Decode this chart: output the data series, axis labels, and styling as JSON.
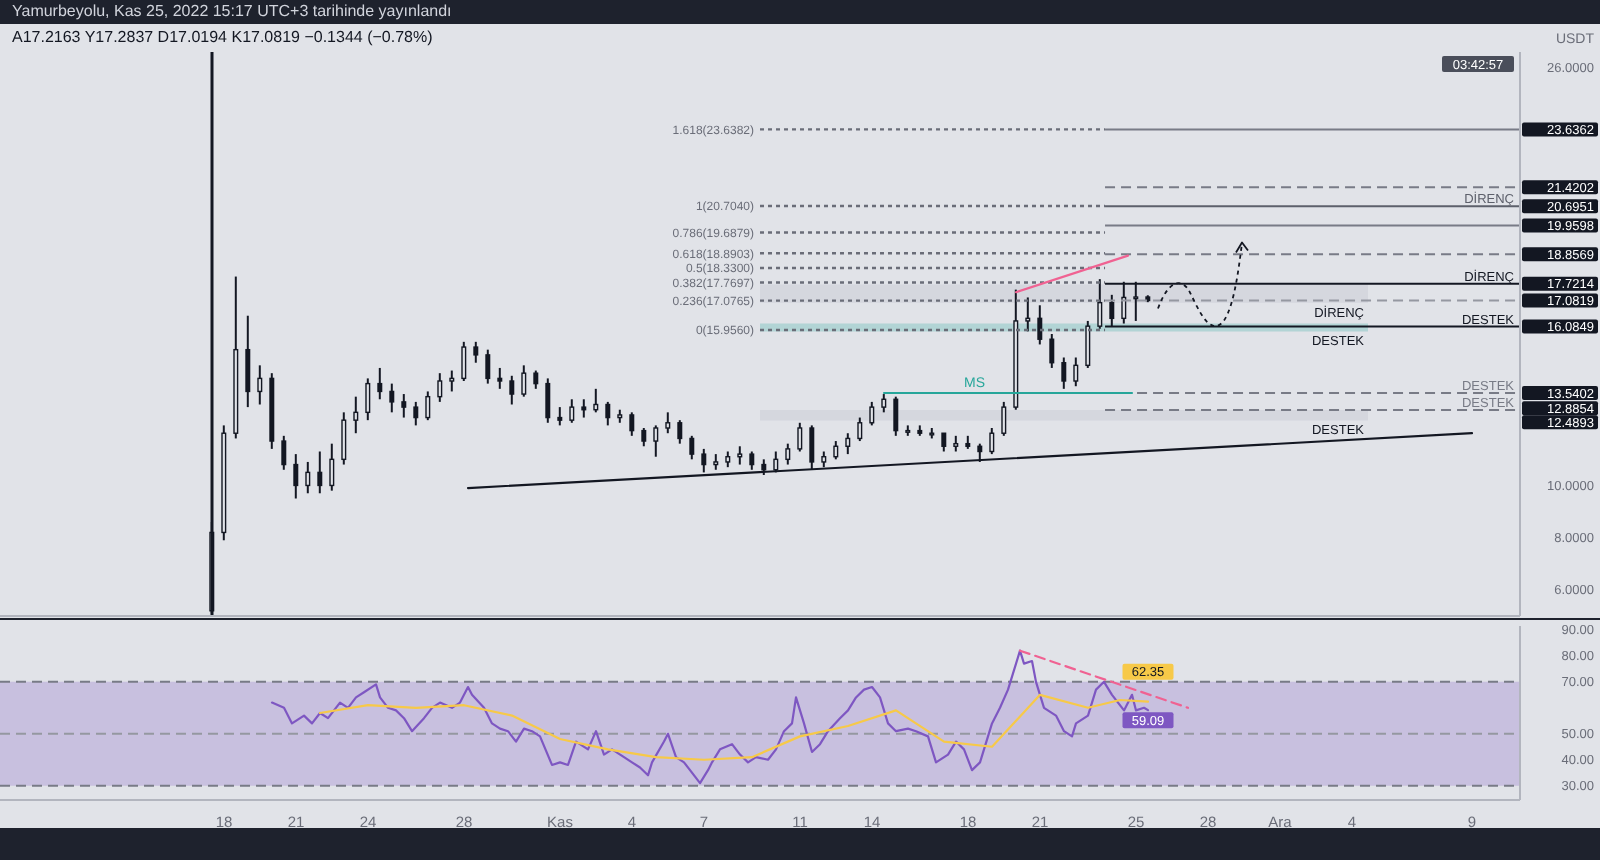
{
  "chart_data": [
    {
      "type": "candlestick",
      "title": "Yamurbeyolu, Kas 25, 2022 15:17 UTC+3 tarihinde yayınlandı",
      "subtitle": "A17.2163 Y17.2837 D17.0194 K17.0819 −0.1344 (−0.78%)",
      "ylabel": "USDT",
      "color": "#131722",
      "x": [
        "2022-10-17T12:00",
        "2022-10-18T00:00",
        "2022-10-18T12:00",
        "2022-10-19T00:00",
        "2022-10-19T12:00",
        "2022-10-20T00:00",
        "2022-10-20T12:00",
        "2022-10-21T00:00",
        "2022-10-21T12:00",
        "2022-10-22T00:00",
        "2022-10-22T12:00",
        "2022-10-23T00:00",
        "2022-10-23T12:00",
        "2022-10-24T00:00",
        "2022-10-24T12:00",
        "2022-10-25T00:00",
        "2022-10-25T12:00",
        "2022-10-26T00:00",
        "2022-10-26T12:00",
        "2022-10-27T00:00",
        "2022-10-27T12:00",
        "2022-10-28T00:00",
        "2022-10-28T12:00",
        "2022-10-29T00:00",
        "2022-10-29T12:00",
        "2022-10-30T00:00",
        "2022-10-30T12:00",
        "2022-10-31T00:00",
        "2022-10-31T12:00",
        "2022-11-01T00:00",
        "2022-11-01T12:00",
        "2022-11-02T00:00",
        "2022-11-02T12:00",
        "2022-11-03T00:00",
        "2022-11-03T12:00",
        "2022-11-04T00:00",
        "2022-11-04T12:00",
        "2022-11-05T00:00",
        "2022-11-05T12:00",
        "2022-11-06T00:00",
        "2022-11-06T12:00",
        "2022-11-07T00:00",
        "2022-11-07T12:00",
        "2022-11-08T00:00",
        "2022-11-08T12:00",
        "2022-11-09T00:00",
        "2022-11-09T12:00",
        "2022-11-10T00:00",
        "2022-11-10T12:00",
        "2022-11-11T00:00",
        "2022-11-11T12:00",
        "2022-11-12T00:00",
        "2022-11-12T12:00",
        "2022-11-13T00:00",
        "2022-11-13T12:00",
        "2022-11-14T00:00",
        "2022-11-14T12:00",
        "2022-11-15T00:00",
        "2022-11-15T12:00",
        "2022-11-16T00:00",
        "2022-11-16T12:00",
        "2022-11-17T00:00",
        "2022-11-17T12:00",
        "2022-11-18T00:00",
        "2022-11-18T12:00",
        "2022-11-19T00:00",
        "2022-11-19T12:00",
        "2022-11-20T00:00",
        "2022-11-20T12:00",
        "2022-11-21T00:00",
        "2022-11-21T12:00",
        "2022-11-22T00:00",
        "2022-11-22T12:00",
        "2022-11-23T00:00",
        "2022-11-23T12:00",
        "2022-11-24T00:00",
        "2022-11-24T12:00",
        "2022-11-25T00:00",
        "2022-11-25T12:00"
      ],
      "ohlc": [
        [
          5.2,
          8.6,
          5.1,
          8.2
        ],
        [
          8.2,
          12.3,
          7.9,
          12.0
        ],
        [
          12.0,
          18.0,
          11.8,
          15.2
        ],
        [
          15.2,
          16.5,
          13.0,
          13.6
        ],
        [
          13.6,
          14.6,
          13.1,
          14.1
        ],
        [
          14.1,
          14.3,
          11.4,
          11.7
        ],
        [
          11.7,
          11.9,
          10.6,
          10.8
        ],
        [
          10.8,
          11.2,
          9.5,
          10.0
        ],
        [
          10.0,
          10.9,
          9.7,
          10.5
        ],
        [
          10.5,
          11.3,
          9.7,
          10.0
        ],
        [
          10.0,
          11.6,
          9.8,
          11.0
        ],
        [
          11.0,
          12.8,
          10.8,
          12.5
        ],
        [
          12.5,
          13.4,
          12.0,
          12.8
        ],
        [
          12.8,
          14.1,
          12.5,
          13.9
        ],
        [
          13.9,
          14.5,
          13.3,
          13.6
        ],
        [
          13.6,
          13.9,
          12.8,
          13.2
        ],
        [
          13.2,
          13.5,
          12.6,
          13.0
        ],
        [
          13.0,
          13.2,
          12.3,
          12.6
        ],
        [
          12.6,
          13.6,
          12.5,
          13.4
        ],
        [
          13.4,
          14.3,
          13.2,
          14.0
        ],
        [
          14.0,
          14.4,
          13.6,
          14.1
        ],
        [
          14.1,
          15.5,
          14.0,
          15.3
        ],
        [
          15.3,
          15.5,
          14.7,
          15.0
        ],
        [
          15.0,
          15.2,
          13.9,
          14.1
        ],
        [
          14.1,
          14.5,
          13.7,
          14.0
        ],
        [
          14.0,
          14.2,
          13.1,
          13.5
        ],
        [
          13.5,
          14.6,
          13.4,
          14.3
        ],
        [
          14.3,
          14.4,
          13.7,
          13.9
        ],
        [
          13.9,
          14.1,
          12.4,
          12.6
        ],
        [
          12.6,
          13.0,
          12.3,
          12.5
        ],
        [
          12.5,
          13.3,
          12.4,
          13.0
        ],
        [
          13.0,
          13.3,
          12.6,
          12.9
        ],
        [
          12.9,
          13.7,
          12.8,
          13.1
        ],
        [
          13.1,
          13.2,
          12.3,
          12.6
        ],
        [
          12.6,
          12.9,
          12.4,
          12.7
        ],
        [
          12.7,
          12.8,
          11.9,
          12.1
        ],
        [
          12.1,
          12.2,
          11.5,
          11.7
        ],
        [
          11.7,
          12.3,
          11.1,
          12.2
        ],
        [
          12.2,
          12.8,
          12.0,
          12.4
        ],
        [
          12.4,
          12.5,
          11.6,
          11.8
        ],
        [
          11.8,
          11.9,
          11.0,
          11.2
        ],
        [
          11.2,
          11.4,
          10.5,
          10.8
        ],
        [
          10.8,
          11.2,
          10.6,
          10.9
        ],
        [
          10.9,
          11.3,
          10.7,
          11.1
        ],
        [
          11.1,
          11.5,
          10.8,
          11.2
        ],
        [
          11.2,
          11.3,
          10.6,
          10.8
        ],
        [
          10.8,
          11.0,
          10.4,
          10.6
        ],
        [
          10.6,
          11.3,
          10.5,
          11.0
        ],
        [
          11.0,
          11.6,
          10.8,
          11.4
        ],
        [
          11.4,
          12.4,
          11.3,
          12.2
        ],
        [
          12.2,
          12.3,
          10.6,
          10.9
        ],
        [
          10.9,
          11.3,
          10.7,
          11.1
        ],
        [
          11.1,
          11.7,
          11.0,
          11.5
        ],
        [
          11.5,
          12.0,
          11.2,
          11.8
        ],
        [
          11.8,
          12.6,
          11.7,
          12.4
        ],
        [
          12.4,
          13.2,
          12.3,
          13.0
        ],
        [
          13.0,
          13.5,
          12.8,
          13.3
        ],
        [
          13.3,
          13.4,
          11.9,
          12.1
        ],
        [
          12.1,
          12.3,
          11.9,
          12.1
        ],
        [
          12.1,
          12.3,
          11.9,
          12.0
        ],
        [
          12.0,
          12.2,
          11.8,
          12.0
        ],
        [
          12.0,
          12.0,
          11.3,
          11.5
        ],
        [
          11.5,
          11.9,
          11.3,
          11.6
        ],
        [
          11.6,
          11.9,
          11.4,
          11.5
        ],
        [
          11.5,
          11.6,
          10.9,
          11.3
        ],
        [
          11.3,
          12.2,
          11.2,
          12.0
        ],
        [
          12.0,
          13.2,
          11.9,
          13.0
        ],
        [
          13.0,
          17.5,
          12.9,
          16.3
        ],
        [
          16.3,
          17.2,
          15.9,
          16.4
        ],
        [
          16.4,
          16.9,
          15.4,
          15.6
        ],
        [
          15.6,
          15.8,
          14.5,
          14.7
        ],
        [
          14.7,
          14.9,
          13.7,
          14.0
        ],
        [
          14.0,
          14.9,
          13.8,
          14.6
        ],
        [
          14.6,
          16.3,
          14.5,
          16.1
        ],
        [
          16.1,
          17.9,
          16.0,
          17.0
        ],
        [
          17.0,
          17.3,
          16.1,
          16.4
        ],
        [
          16.4,
          17.8,
          16.2,
          17.2
        ],
        [
          17.2,
          17.8,
          16.3,
          17.2163
        ],
        [
          17.2163,
          17.2837,
          17.0194,
          17.0819
        ]
      ],
      "xlim": [
        "2022-10-08T16:00",
        "2022-12-11T00:00"
      ],
      "ylim": [
        5,
        26.6
      ],
      "yticks": [
        {
          "value": 6,
          "label": "6.0000"
        },
        {
          "value": 8,
          "label": "8.0000"
        },
        {
          "value": 10,
          "label": "10.0000"
        },
        12.4893,
        12.8854,
        13.5402,
        16.0849,
        17.0819,
        17.7214,
        18.8569,
        19.9598,
        20.6951,
        21.4202,
        23.6362,
        {
          "value": 26,
          "label": "26.0000"
        }
      ],
      "tick_labels": "y",
      "series": [
        {
          "type": "line",
          "color": "#131722",
          "x": [
            "2022-10-28T04:00",
            "2022-12-09T00:00"
          ],
          "values": [
            9.9,
            12.0
          ]
        },
        {
          "type": "line",
          "color": "#f06292",
          "x": [
            "2022-11-20T00:00",
            "2022-11-24T16:00"
          ],
          "values": [
            17.4,
            18.8
          ]
        },
        {
          "type": "line",
          "name": "MS",
          "color": "#26a69a",
          "x": [
            "2022-11-14T12:00",
            "2022-11-24T20:00"
          ],
          "values": [
            13.54,
            13.54
          ]
        }
      ],
      "ref_lines": [
        {
          "axis": "x",
          "value": "2022-10-17T12:00",
          "color": "#131722"
        },
        {
          "axis": "y",
          "value": 23.6362,
          "color": "#787b86"
        },
        {
          "axis": "y",
          "value": 21.4202,
          "color": "#787b86",
          "line_style": "dashed"
        },
        {
          "axis": "y",
          "value": 20.6951,
          "color": "#5d606b",
          "label": "DİRENÇ"
        },
        {
          "axis": "y",
          "value": 19.9598,
          "color": "#787b86"
        },
        {
          "axis": "y",
          "value": 18.8569,
          "color": "#787b86",
          "line_style": "dashed"
        },
        {
          "axis": "y",
          "value": 17.7214,
          "color": "#131722",
          "label": "DİRENÇ"
        },
        {
          "axis": "y",
          "value": 17.0819,
          "color": "#9598a1",
          "line_style": "dashed"
        },
        {
          "axis": "y",
          "value": 16.0849,
          "color": "#131722",
          "label": "DESTEK"
        },
        {
          "axis": "y",
          "value": 13.5402,
          "color": "#787b86",
          "line_style": "dashed",
          "label": "DESTEK"
        },
        {
          "axis": "y",
          "value": 12.8854,
          "color": "#787b86",
          "line_style": "dashed",
          "label": "DESTEK"
        },
        {
          "axis": "y",
          "value": 23.6382,
          "color": "#6a6d78",
          "line_style": "dotted",
          "label": "1.618(23.6382)"
        },
        {
          "axis": "y",
          "value": 20.704,
          "color": "#6a6d78",
          "line_style": "dotted",
          "label": "1(20.7040)"
        },
        {
          "axis": "y",
          "value": 19.6879,
          "color": "#6a6d78",
          "line_style": "dotted",
          "label": "0.786(19.6879)"
        },
        {
          "axis": "y",
          "value": 18.8903,
          "color": "#6a6d78",
          "line_style": "dotted",
          "label": "0.618(18.8903)"
        },
        {
          "axis": "y",
          "value": 18.33,
          "color": "#6a6d78",
          "line_style": "dotted",
          "label": "0.5(18.3300)"
        },
        {
          "axis": "y",
          "value": 17.7697,
          "color": "#6a6d78",
          "line_style": "dotted",
          "label": "0.382(17.7697)"
        },
        {
          "axis": "y",
          "value": 17.0765,
          "color": "#6a6d78",
          "line_style": "dotted",
          "label": "0.236(17.0765)"
        },
        {
          "axis": "y",
          "value": 15.956,
          "color": "#6a6d78",
          "line_style": "dotted",
          "label": "0(15.9560)"
        }
      ],
      "bands": [
        {
          "axis": "y",
          "from": 17.0,
          "to": 17.7,
          "label": "DİRENÇ",
          "color": "#b2b5be"
        },
        {
          "axis": "y",
          "from": 15.9,
          "to": 16.2,
          "label": "DESTEK",
          "color": "#26a69a"
        },
        {
          "axis": "y",
          "from": 12.4893,
          "to": 12.8854,
          "label": "DESTEK",
          "color": "#b2b5be"
        }
      ],
      "annotations": [
        "03:42:57"
      ]
    },
    {
      "type": "line",
      "xlim": [
        "2022-10-08T16:00",
        "2022-12-11T00:00"
      ],
      "xticks": [
        {
          "value": "2022-10-18",
          "label": "18"
        },
        {
          "value": "2022-10-21",
          "label": "21"
        },
        {
          "value": "2022-10-24",
          "label": "24"
        },
        {
          "value": "2022-10-28",
          "label": "28"
        },
        {
          "value": "2022-11-01",
          "label": "Kas"
        },
        {
          "value": "2022-11-04",
          "label": "4"
        },
        {
          "value": "2022-11-07",
          "label": "7"
        },
        {
          "value": "2022-11-11",
          "label": "11"
        },
        {
          "value": "2022-11-14",
          "label": "14"
        },
        {
          "value": "2022-11-18",
          "label": "18"
        },
        {
          "value": "2022-11-21",
          "label": "21"
        },
        {
          "value": "2022-11-25",
          "label": "25"
        },
        {
          "value": "2022-11-28",
          "label": "28"
        },
        {
          "value": "2022-12-01",
          "label": "Ara"
        },
        {
          "value": "2022-12-04",
          "label": "4"
        },
        {
          "value": "2022-12-09",
          "label": "9"
        }
      ],
      "ylim": [
        24.5,
        91.5
      ],
      "yticks": [
        {
          "value": 30,
          "label": "30.00"
        },
        {
          "value": 40,
          "label": "40.00"
        },
        {
          "value": 50,
          "label": "50.00"
        },
        {
          "value": 70,
          "label": "70.00"
        },
        {
          "value": 80,
          "label": "80.00"
        },
        {
          "value": 90,
          "label": "90.00"
        }
      ],
      "series": [
        {
          "color": "#7e57c2",
          "x": [
            "2022-10-20T00:00",
            "2022-10-20T12:00",
            "2022-10-20T20:00",
            "2022-10-21T08:00",
            "2022-10-21T16:00",
            "2022-10-22T00:00",
            "2022-10-22T08:00",
            "2022-10-22T20:00",
            "2022-10-23T04:00",
            "2022-10-23T12:00",
            "2022-10-23T20:00",
            "2022-10-24T08:00",
            "2022-10-24T12:00",
            "2022-10-24T20:00",
            "2022-10-25T04:00",
            "2022-10-25T12:00",
            "2022-10-25T20:00",
            "2022-10-26T08:00",
            "2022-10-26T16:00",
            "2022-10-27T00:00",
            "2022-10-27T12:00",
            "2022-10-27T20:00",
            "2022-10-28T04:00",
            "2022-10-28T08:00",
            "2022-10-28T20:00",
            "2022-10-29T04:00",
            "2022-10-29T12:00",
            "2022-10-29T20:00",
            "2022-10-30T04:00",
            "2022-10-30T12:00",
            "2022-10-30T20:00",
            "2022-10-31T04:00",
            "2022-10-31T16:00",
            "2022-11-01T00:00",
            "2022-11-01T08:00",
            "2022-11-01T16:00",
            "2022-11-02T04:00",
            "2022-11-02T12:00",
            "2022-11-02T20:00",
            "2022-11-03T04:00",
            "2022-11-03T16:00",
            "2022-11-04T00:00",
            "2022-11-04T08:00",
            "2022-11-04T16:00",
            "2022-11-04T20:00",
            "2022-11-05T08:00",
            "2022-11-05T12:00",
            "2022-11-05T20:00",
            "2022-11-06T04:00",
            "2022-11-06T16:00",
            "2022-11-06T20:00",
            "2022-11-07T04:00",
            "2022-11-07T08:00",
            "2022-11-07T16:00",
            "2022-11-08T04:00",
            "2022-11-08T12:00",
            "2022-11-08T20:00",
            "2022-11-09T04:00",
            "2022-11-09T16:00",
            "2022-11-10T00:00",
            "2022-11-10T08:00",
            "2022-11-10T16:00",
            "2022-11-10T20:00",
            "2022-11-11T04:00",
            "2022-11-11T12:00",
            "2022-11-11T20:00",
            "2022-11-12T04:00",
            "2022-11-12T16:00",
            "2022-11-13T00:00",
            "2022-11-13T08:00",
            "2022-11-13T16:00",
            "2022-11-14T00:00",
            "2022-11-14T08:00",
            "2022-11-14T16:00",
            "2022-11-15T00:00",
            "2022-11-15T12:00",
            "2022-11-15T20:00",
            "2022-11-16T08:00",
            "2022-11-16T16:00",
            "2022-11-17T04:00",
            "2022-11-17T12:00",
            "2022-11-17T20:00",
            "2022-11-18T04:00",
            "2022-11-18T12:00",
            "2022-11-18T16:00",
            "2022-11-19T00:00",
            "2022-11-19T08:00",
            "2022-11-19T16:00",
            "2022-11-20T04:00",
            "2022-11-20T08:00",
            "2022-11-20T16:00",
            "2022-11-20T20:00",
            "2022-11-21T04:00",
            "2022-11-21T16:00",
            "2022-11-22T00:00",
            "2022-11-22T08:00",
            "2022-11-22T12:00",
            "2022-11-23T00:00",
            "2022-11-23T08:00",
            "2022-11-23T16:00",
            "2022-11-24T00:00",
            "2022-11-24T12:00",
            "2022-11-24T20:00",
            "2022-11-25T00:00",
            "2022-11-25T08:00",
            "2022-11-25T12:00"
          ],
          "values": [
            62,
            60,
            54,
            57,
            54,
            58,
            56,
            62,
            60,
            64,
            66,
            69,
            64,
            60,
            59,
            56,
            51,
            56,
            60,
            62,
            60,
            62,
            68,
            65,
            60,
            54,
            52,
            51,
            47,
            52,
            51,
            49,
            38,
            39,
            38,
            47,
            44,
            51,
            42,
            44,
            41,
            39,
            37,
            34,
            39,
            47,
            50,
            41,
            39,
            33,
            31,
            36,
            39,
            44,
            46,
            42,
            39,
            41,
            40,
            44,
            51,
            54,
            64,
            54,
            43,
            46,
            51,
            56,
            59,
            64,
            67,
            68,
            64,
            54,
            51,
            52,
            51,
            49,
            39,
            42,
            47,
            44,
            36,
            39,
            44,
            54,
            60,
            67,
            82,
            77,
            78,
            70,
            60,
            57,
            51,
            49,
            54,
            57,
            67,
            70,
            65,
            59,
            65,
            59,
            60,
            59.09
          ],
          "value_labels": [
            null,
            null,
            null,
            null,
            null,
            null,
            null,
            null,
            null,
            null,
            null,
            null,
            null,
            null,
            null,
            null,
            null,
            null,
            null,
            null,
            null,
            null,
            null,
            null,
            null,
            null,
            null,
            null,
            null,
            null,
            null,
            null,
            null,
            null,
            null,
            null,
            null,
            null,
            null,
            null,
            null,
            null,
            null,
            null,
            null,
            null,
            null,
            null,
            null,
            null,
            null,
            null,
            null,
            null,
            null,
            null,
            null,
            null,
            null,
            null,
            null,
            null,
            null,
            null,
            null,
            null,
            null,
            null,
            null,
            null,
            null,
            null,
            null,
            null,
            null,
            null,
            null,
            null,
            null,
            null,
            null,
            null,
            null,
            null,
            null,
            null,
            null,
            null,
            null,
            null,
            null,
            null,
            null,
            null,
            null,
            null,
            null,
            null,
            null,
            null,
            null,
            null,
            null,
            null,
            null,
            "59.09"
          ]
        },
        {
          "color": "#f7c948",
          "x": [
            "2022-10-22T00:00",
            "2022-10-24T00:00",
            "2022-10-26T00:00",
            "2022-10-28T00:00",
            "2022-10-30T00:00",
            "2022-11-01T00:00",
            "2022-11-03T00:00",
            "2022-11-05T00:00",
            "2022-11-07T00:00",
            "2022-11-09T00:00",
            "2022-11-11T00:00",
            "2022-11-13T00:00",
            "2022-11-15T00:00",
            "2022-11-17T00:00",
            "2022-11-19T00:00",
            "2022-11-21T00:00",
            "2022-11-23T00:00",
            "2022-11-24T08:00",
            "2022-11-25T12:00"
          ],
          "values": [
            58,
            61,
            60,
            61,
            57,
            48,
            44,
            41,
            40,
            41,
            49,
            53,
            59,
            47,
            45,
            65,
            60,
            63,
            62.35
          ],
          "value_labels": [
            null,
            null,
            null,
            null,
            null,
            null,
            null,
            null,
            null,
            null,
            null,
            null,
            null,
            null,
            null,
            null,
            null,
            null,
            "62.35"
          ]
        },
        {
          "color": "#f06292",
          "line_style": "dashed",
          "x": [
            "2022-11-20T04:00",
            "2022-11-27T04:00"
          ],
          "values": [
            82,
            60
          ]
        }
      ],
      "bands": [
        {
          "axis": "y",
          "from": 30,
          "to": 70,
          "color": "#7e57c2"
        }
      ],
      "ref_lines": [
        {
          "axis": "y",
          "value": 70,
          "color": "#787b86",
          "line_style": "dashed"
        },
        {
          "axis": "y",
          "value": 50,
          "color": "#9598a1",
          "line_style": "dashed"
        },
        {
          "axis": "y",
          "value": 30,
          "color": "#787b86",
          "line_style": "dashed"
        }
      ]
    }
  ]
}
